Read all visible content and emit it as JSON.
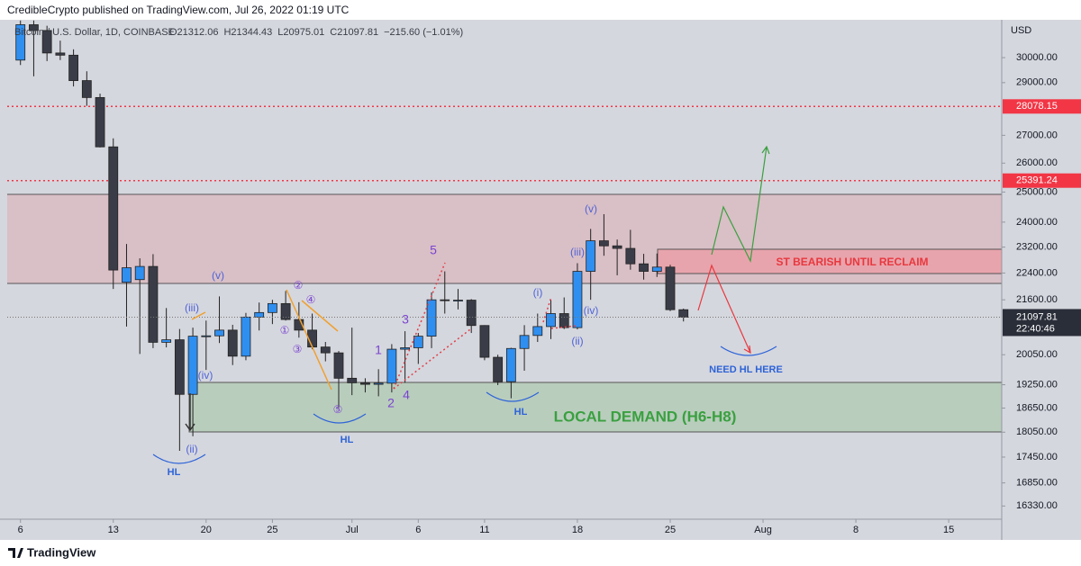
{
  "header": {
    "publisher": "CredibleCrypto published on TradingView.com, Jul 26, 2022 01:19 UTC",
    "brand": "TradingView"
  },
  "chart_data": {
    "type": "candlestick",
    "symbol": "Bitcoin / U.S. Dollar, 1D, COINBASE",
    "ohlc_text": [
      "O21312.06",
      "H21344.43",
      "L20975.01",
      "C21097.81",
      "−215.60 (−1.01%)"
    ],
    "currency": "USD",
    "countdown": "22:40:46",
    "log_scale": true,
    "up_color": "#2f8ff0",
    "down_color": "#3a3d47",
    "x": [
      "2022-06-06",
      "2022-06-07",
      "2022-06-08",
      "2022-06-09",
      "2022-06-10",
      "2022-06-11",
      "2022-06-12",
      "2022-06-13",
      "2022-06-14",
      "2022-06-15",
      "2022-06-16",
      "2022-06-17",
      "2022-06-18",
      "2022-06-19",
      "2022-06-20",
      "2022-06-21",
      "2022-06-22",
      "2022-06-23",
      "2022-06-24",
      "2022-06-25",
      "2022-06-26",
      "2022-06-27",
      "2022-06-28",
      "2022-06-29",
      "2022-06-30",
      "2022-07-01",
      "2022-07-02",
      "2022-07-03",
      "2022-07-04",
      "2022-07-05",
      "2022-07-06",
      "2022-07-07",
      "2022-07-08",
      "2022-07-09",
      "2022-07-10",
      "2022-07-11",
      "2022-07-12",
      "2022-07-13",
      "2022-07-14",
      "2022-07-15",
      "2022-07-16",
      "2022-07-17",
      "2022-07-18",
      "2022-07-19",
      "2022-07-20",
      "2022-07-21",
      "2022-07-22",
      "2022-07-23",
      "2022-07-24",
      "2022-07-25",
      "2022-07-26"
    ],
    "open": [
      29900,
      31370,
      31125,
      30190,
      30100,
      29080,
      28420,
      26580,
      22120,
      22200,
      22600,
      20390,
      20460,
      19000,
      20560,
      20570,
      20730,
      20010,
      21100,
      21230,
      21490,
      21030,
      20730,
      20260,
      20100,
      19420,
      19300,
      19260,
      19290,
      20200,
      20240,
      20560,
      21600,
      21590,
      21590,
      20860,
      19980,
      19330,
      20220,
      20580,
      20830,
      21200,
      20800,
      22450,
      23400,
      23240,
      23160,
      22680,
      22450,
      22580,
      21312.06
    ],
    "high": [
      31550,
      31550,
      31325,
      30700,
      30340,
      29450,
      28570,
      26890,
      23300,
      22850,
      22980,
      21360,
      20760,
      20800,
      21000,
      21700,
      20880,
      21220,
      21520,
      21600,
      21860,
      21530,
      21200,
      20400,
      20150,
      20800,
      19420,
      19660,
      20340,
      20700,
      20650,
      21820,
      22450,
      21920,
      21620,
      20870,
      20050,
      20240,
      20870,
      21200,
      21600,
      21670,
      22700,
      23780,
      24260,
      23440,
      23750,
      22990,
      23000,
      22650,
      21344.43
    ],
    "low": [
      29700,
      29250,
      29860,
      29900,
      28850,
      28100,
      26560,
      21920,
      20830,
      20070,
      20230,
      20250,
      17600,
      17950,
      19640,
      20370,
      19770,
      19900,
      20720,
      20900,
      21000,
      20520,
      20200,
      19870,
      18650,
      18980,
      19050,
      18950,
      19050,
      19300,
      19800,
      20230,
      21200,
      21320,
      20650,
      19900,
      19240,
      18900,
      19620,
      20400,
      20480,
      20760,
      20750,
      21600,
      22930,
      22330,
      22500,
      22200,
      22280,
      21270,
      20975.01
    ],
    "close": [
      31370,
      31125,
      30190,
      30100,
      29080,
      28420,
      26580,
      22490,
      22560,
      22600,
      20390,
      20460,
      19000,
      20560,
      20570,
      20730,
      20010,
      21100,
      21230,
      21490,
      21030,
      20730,
      20260,
      20100,
      19420,
      19300,
      19260,
      19290,
      20200,
      20240,
      20560,
      21600,
      21590,
      21590,
      20860,
      19980,
      19330,
      20220,
      20580,
      20830,
      21200,
      20800,
      22450,
      23400,
      23240,
      23160,
      22680,
      22450,
      22580,
      21313,
      21097.81
    ],
    "xlim": [
      "2022-06-05",
      "2022-08-19"
    ],
    "xticks": [
      {
        "value": "2022-06-06",
        "label": "6"
      },
      {
        "value": "2022-06-13",
        "label": "13"
      },
      {
        "value": "2022-06-20",
        "label": "20"
      },
      {
        "value": "2022-06-25",
        "label": "25"
      },
      {
        "value": "2022-07-01",
        "label": "Jul"
      },
      {
        "value": "2022-07-06",
        "label": "6"
      },
      {
        "value": "2022-07-11",
        "label": "11"
      },
      {
        "value": "2022-07-18",
        "label": "18"
      },
      {
        "value": "2022-07-25",
        "label": "25"
      },
      {
        "value": "2022-08-01",
        "label": "Aug"
      },
      {
        "value": "2022-08-08",
        "label": "8"
      },
      {
        "value": "2022-08-15",
        "label": "15"
      }
    ],
    "ylim": [
      16040,
      31580
    ],
    "yticks": [
      {
        "value": 30000,
        "label": "30000.00"
      },
      {
        "value": 29000,
        "label": "29000.00"
      },
      {
        "value": 27000,
        "label": "27000.00"
      },
      {
        "value": 26000,
        "label": "26000.00"
      },
      {
        "value": 25000,
        "label": "25000.00"
      },
      {
        "value": 24000,
        "label": "24000.00"
      },
      {
        "value": 23200,
        "label": "23200.00"
      },
      {
        "value": 22400,
        "label": "22400.00"
      },
      {
        "value": 21600,
        "label": "21600.00"
      },
      {
        "value": 20050,
        "label": "20050.00"
      },
      {
        "value": 19250,
        "label": "19250.00"
      },
      {
        "value": 18650,
        "label": "18650.00"
      },
      {
        "value": 18050,
        "label": "18050.00"
      },
      {
        "value": 17450,
        "label": "17450.00"
      },
      {
        "value": 16850,
        "label": "16850.00"
      },
      {
        "value": 16330,
        "label": "16330.00"
      }
    ],
    "levels": [
      {
        "value": 28078.15,
        "color": "#f23645"
      },
      {
        "value": 25391.24,
        "color": "#f23645"
      }
    ],
    "annotations": [
      "(v)",
      "(iii)",
      "(iv)",
      "(ii)",
      "HL",
      "HL",
      "HL",
      "1",
      "2",
      "3",
      "4",
      "5",
      "②",
      "④",
      "①",
      "③",
      "⑤",
      "(i)",
      "(iii)",
      "(iv)",
      "(ii)",
      "(v)",
      "ST BEARISH UNTIL RECLAIM",
      "NEED HL HERE",
      "LOCAL DEMAND (H6-H8)"
    ]
  }
}
